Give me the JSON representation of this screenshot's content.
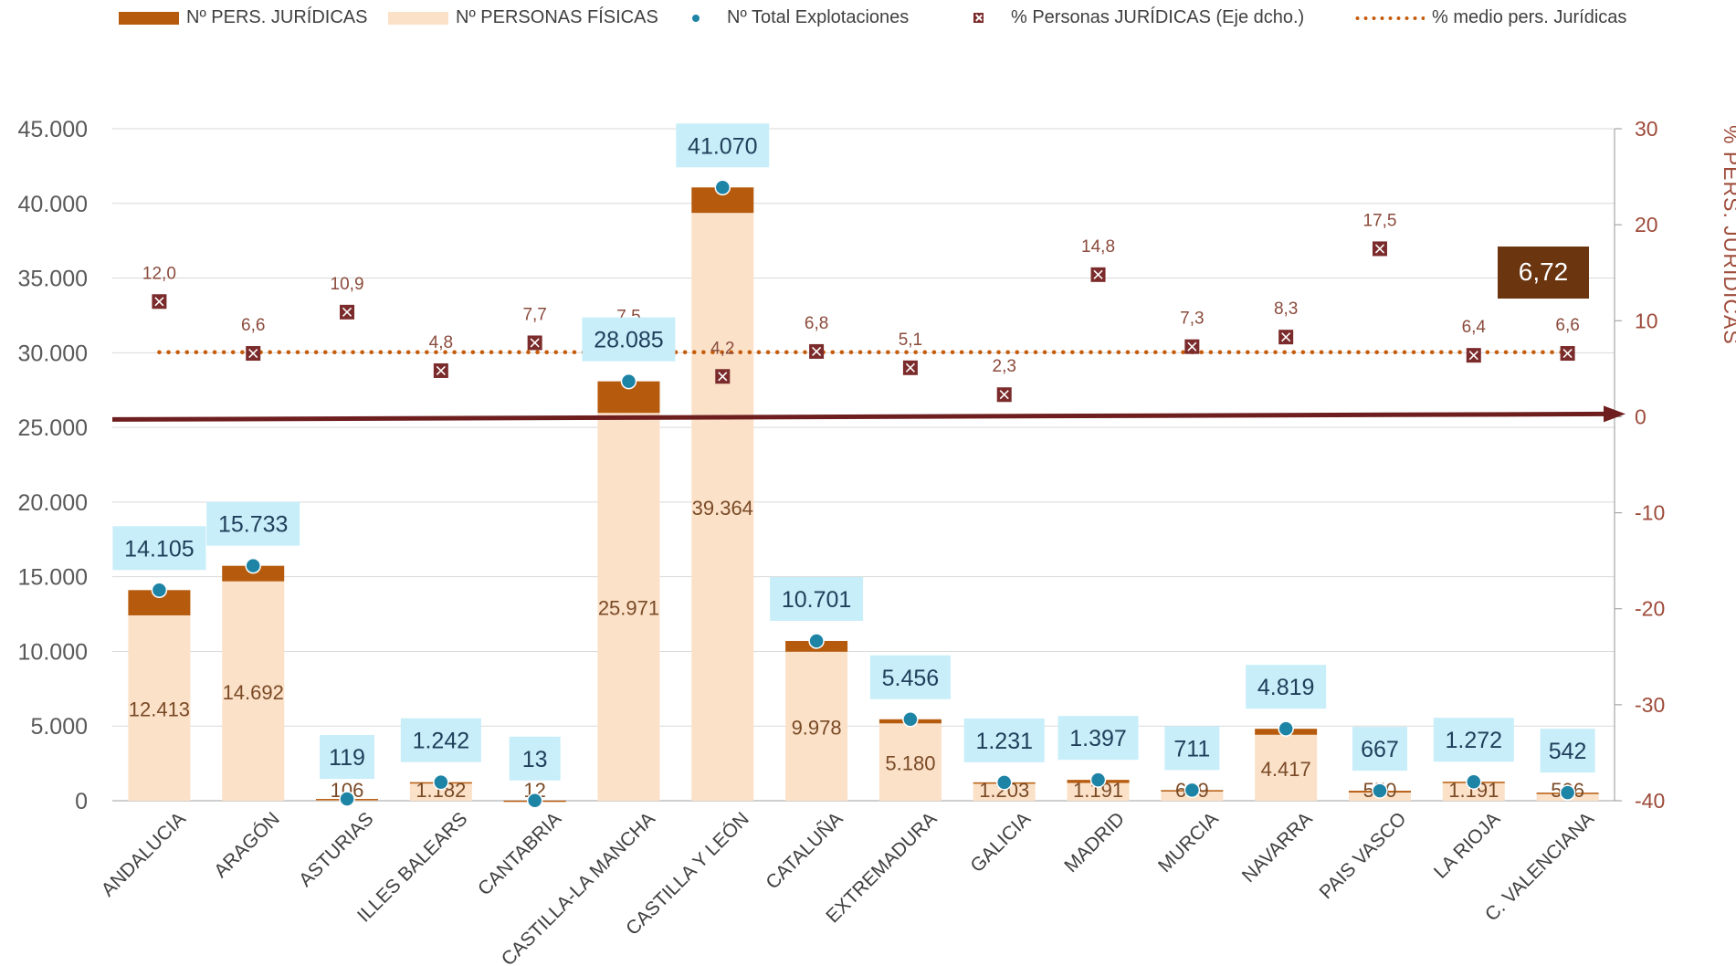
{
  "legend": {
    "juridicas": "Nº PERS. JURÍDICAS",
    "fisicas": "Nº PERSONAS FÍSICAS",
    "total": "Nº Total Explotaciones",
    "pct": "% Personas JURÍDICAS (Eje dcho.)",
    "avg": "% medio pers. Jurídicas"
  },
  "colors": {
    "juridicas": "#b65b0e",
    "fisicas": "#fbe1c8",
    "total": "#1e84a6",
    "pct": "#7b2b2b",
    "avg": "#c65c0a",
    "label_bg": "#c8eef9",
    "label_text": "#1f3f5a",
    "arrow": "#6e1e1e",
    "grid": "#d9d9d9",
    "axis_text": "#595959",
    "right_axis_text": "#9e4b3a"
  },
  "chart_data": {
    "type": "bar",
    "categories": [
      "ANDALUCIA",
      "ARAGÓN",
      "ASTURIAS",
      "ILLES BALEARS",
      "CANTABRIA",
      "CASTILLA-LA MANCHA",
      "CASTILLA Y LEÓN",
      "CATALUÑA",
      "EXTREMADURA",
      "GALICIA",
      "MADRID",
      "MURCIA",
      "NAVARRA",
      "PAIS VASCO",
      "LA RIOJA",
      "C. VALENCIANA"
    ],
    "series": [
      {
        "name": "Nº PERSONAS FÍSICAS",
        "type": "bar",
        "values": [
          12413,
          14692,
          106,
          1182,
          12,
          25971,
          39364,
          9978,
          5180,
          1203,
          1191,
          659,
          4417,
          550,
          1191,
          506
        ],
        "labels": [
          "12.413",
          "14.692",
          "106",
          "1.182",
          "12",
          "25.971",
          "39.364",
          "9.978",
          "5.180",
          "1.203",
          "1.191",
          "659",
          "4.417",
          "550",
          "1.191",
          "506"
        ]
      },
      {
        "name": "Nº PERS. JURÍDICAS",
        "type": "bar",
        "values": [
          1692,
          1041,
          13,
          60,
          1,
          2114,
          1706,
          723,
          276,
          28,
          206,
          52,
          402,
          117,
          81,
          36
        ]
      },
      {
        "name": "Nº Total Explotaciones",
        "type": "point",
        "values": [
          14105,
          15733,
          119,
          1242,
          13,
          28085,
          41070,
          10701,
          5456,
          1231,
          1397,
          711,
          4819,
          667,
          1272,
          542
        ],
        "labels": [
          "14.105",
          "15.733",
          "119",
          "1.242",
          "13",
          "28.085",
          "41.070",
          "10.701",
          "5.456",
          "1.231",
          "1.397",
          "711",
          "4.819",
          "667",
          "1.272",
          "542"
        ]
      },
      {
        "name": "% Personas JURÍDICAS (Eje dcho.)",
        "type": "point",
        "axis": "right",
        "values": [
          12.0,
          6.6,
          10.9,
          4.8,
          7.7,
          7.5,
          4.2,
          6.8,
          5.1,
          2.3,
          14.8,
          7.3,
          8.3,
          17.5,
          6.4,
          6.6
        ],
        "labels": [
          "12,0",
          "6,6",
          "10,9",
          "4,8",
          "7,7",
          "7,5",
          "4,2",
          "6,8",
          "5,1",
          "2,3",
          "14,8",
          "7,3",
          "8,3",
          "17,5",
          "6,4",
          "6,6"
        ]
      },
      {
        "name": "% medio pers. Jurídicas",
        "type": "line",
        "axis": "right",
        "value": 6.72
      }
    ],
    "ylim": [
      0,
      45000
    ],
    "yticks": [
      "0",
      "5.000",
      "10.000",
      "15.000",
      "20.000",
      "25.000",
      "30.000",
      "35.000",
      "40.000",
      "45.000"
    ],
    "y2lim": [
      -40,
      30
    ],
    "y2ticks": [
      "-40",
      "-30",
      "-20",
      "-10",
      "0",
      "10",
      "20",
      "30"
    ],
    "y2label": "% PERS. JURÍDICAS",
    "avg_label": "6,72",
    "grid": true,
    "legend_position": "top"
  }
}
